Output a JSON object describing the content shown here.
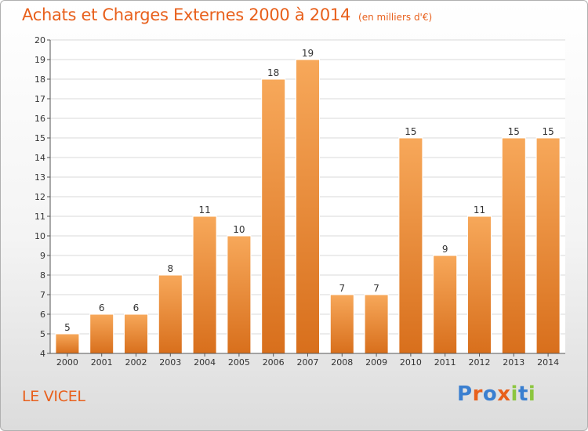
{
  "header": {
    "title": "Achats et Charges Externes 2000 à 2014",
    "unit": "(en milliers d'€)"
  },
  "location": "LE VICEL",
  "logo": {
    "text": "Proxiti",
    "letter_colors": [
      "#3a7fd0",
      "#e8601c",
      "#3a7fd0",
      "#e8601c",
      "#8cc63f",
      "#3a7fd0",
      "#8cc63f"
    ]
  },
  "colors": {
    "bar_top": "#f7a85a",
    "bar_bottom": "#d86f1c",
    "title": "#e8601c"
  },
  "chart_data": {
    "type": "bar",
    "categories": [
      "2000",
      "2001",
      "2002",
      "2003",
      "2004",
      "2005",
      "2006",
      "2007",
      "2008",
      "2009",
      "2010",
      "2011",
      "2012",
      "2013",
      "2014"
    ],
    "values": [
      5,
      6,
      6,
      8,
      11,
      10,
      18,
      19,
      7,
      7,
      15,
      9,
      11,
      15,
      15
    ],
    "ylim": [
      4,
      20
    ],
    "yticks": [
      4,
      5,
      6,
      7,
      8,
      9,
      10,
      11,
      12,
      13,
      14,
      15,
      16,
      17,
      18,
      19,
      20
    ],
    "grid": true
  }
}
